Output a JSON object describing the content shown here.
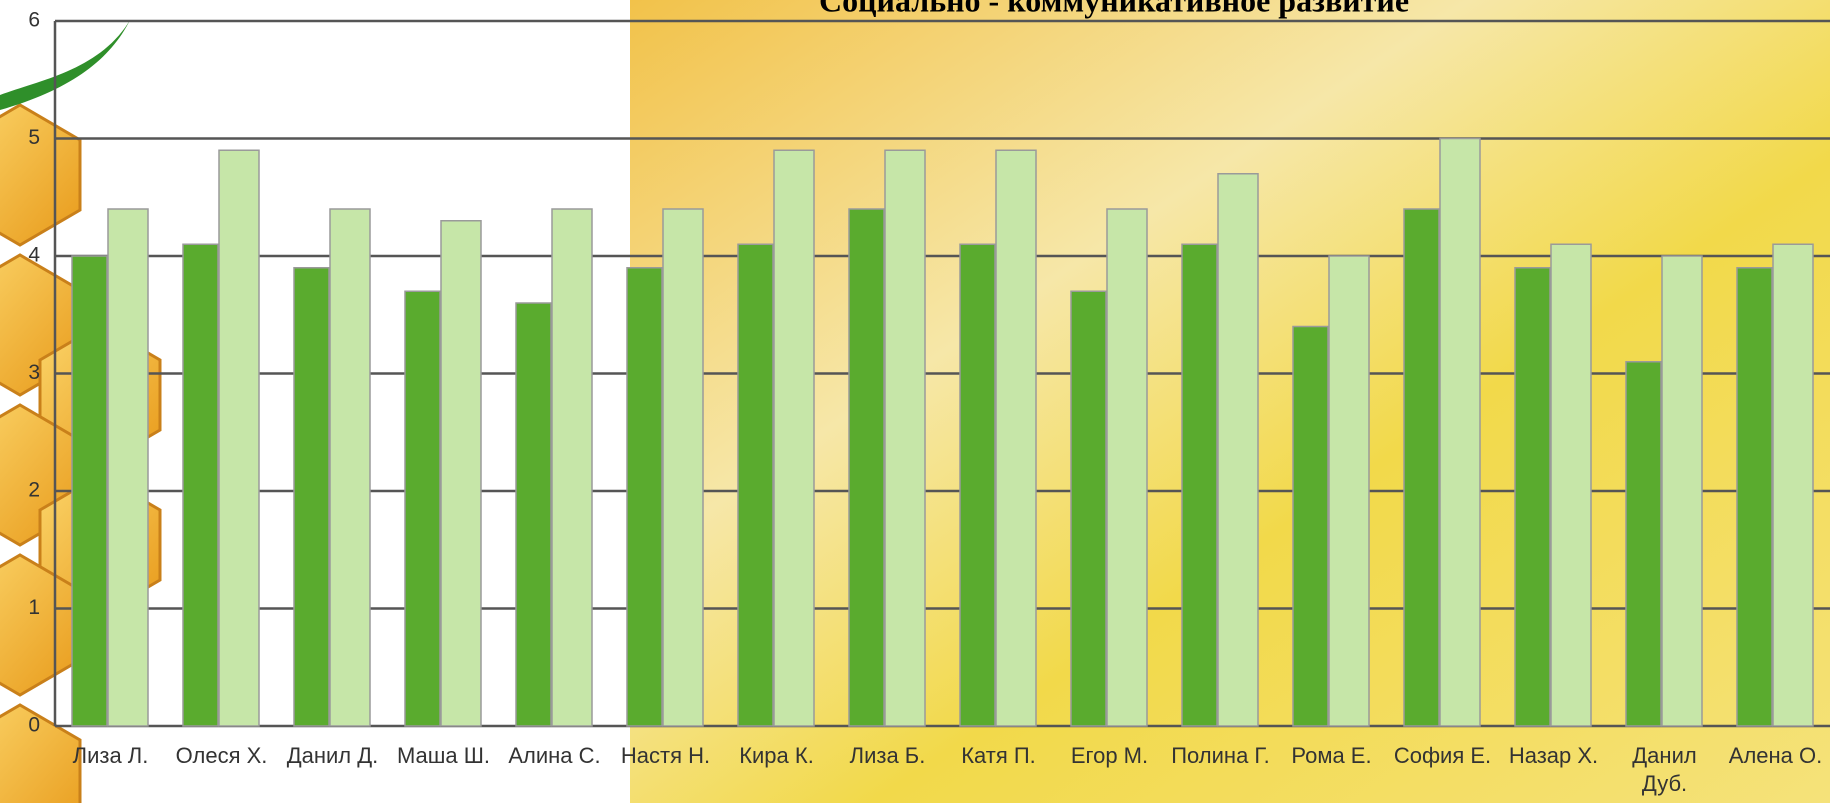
{
  "chart_data": {
    "type": "bar",
    "title": "Социально - коммуникативное развитие",
    "categories": [
      "Лиза Л.",
      "Олеся Х.",
      "Данил Д.",
      "Маша Ш.",
      "Алина С.",
      "Настя Н.",
      "Кира К.",
      "Лиза Б.",
      "Катя П.",
      "Егор М.",
      "Полина Г.",
      "Рома Е.",
      "София Е.",
      "Назар Х.",
      "Данил Дуб.",
      "Алена О."
    ],
    "series": [
      {
        "color": "#5aab2e",
        "values": [
          4.0,
          4.1,
          3.9,
          3.7,
          3.6,
          3.9,
          4.1,
          4.4,
          4.1,
          3.7,
          4.1,
          3.4,
          4.4,
          3.9,
          3.1,
          3.9
        ]
      },
      {
        "color": "#c6e6a8",
        "values": [
          4.4,
          4.9,
          4.4,
          4.3,
          4.4,
          4.4,
          4.9,
          4.9,
          4.9,
          4.4,
          4.7,
          4.0,
          5.0,
          4.1,
          4.0,
          4.1
        ]
      }
    ],
    "ylim": [
      0,
      6
    ],
    "yticks": [
      0,
      1,
      2,
      3,
      4,
      5,
      6
    ],
    "grid": true
  }
}
